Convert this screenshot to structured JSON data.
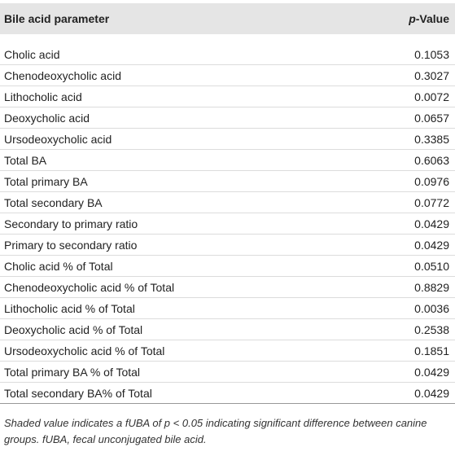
{
  "table": {
    "header": {
      "parameter": "Bile acid parameter",
      "pvalue_italic": "p",
      "pvalue_rest": "-Value"
    },
    "rows": [
      [
        "Cholic acid",
        "0.1053"
      ],
      [
        "Chenodeoxycholic acid",
        "0.3027"
      ],
      [
        "Lithocholic acid",
        "0.0072"
      ],
      [
        "Deoxycholic acid",
        "0.0657"
      ],
      [
        "Ursodeoxycholic acid",
        "0.3385"
      ],
      [
        "Total BA",
        "0.6063"
      ],
      [
        "Total primary BA",
        "0.0976"
      ],
      [
        "Total secondary BA",
        "0.0772"
      ],
      [
        "Secondary to primary ratio",
        "0.0429"
      ],
      [
        "Primary to secondary ratio",
        "0.0429"
      ],
      [
        "Cholic acid % of Total",
        "0.0510"
      ],
      [
        "Chenodeoxycholic acid % of Total",
        "0.8829"
      ],
      [
        "Lithocholic acid % of Total",
        "0.0036"
      ],
      [
        "Deoxycholic acid % of Total",
        "0.2538"
      ],
      [
        "Ursodeoxycholic acid % of Total",
        "0.1851"
      ],
      [
        "Total primary BA % of Total",
        "0.0429"
      ],
      [
        "Total secondary BA% of Total",
        "0.0429"
      ]
    ],
    "footnote": "Shaded value indicates a fUBA of p < 0.05 indicating significant difference between canine groups. fUBA, fecal unconjugated bile acid."
  }
}
